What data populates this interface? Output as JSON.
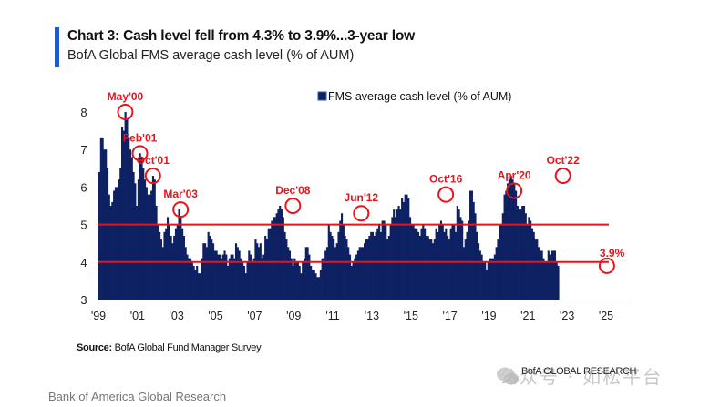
{
  "header": {
    "title": "Chart 3: Cash level fell from 4.3% to 3.9%...3-year low",
    "subtitle": "BofA Global FMS average cash level (% of AUM)"
  },
  "source": {
    "label": "Source:",
    "text": "BofA Global Fund Manager Survey"
  },
  "footer": "Bank of America Global Research",
  "brand": "BofA GLOBAL RESEARCH",
  "watermark": "公众号 · 如松平台",
  "colors": {
    "bar": "#0d2163",
    "reference": "#e8141c",
    "annotation": "#e8141c",
    "title_accent": "#1f5ccc"
  },
  "chart_data": {
    "type": "bar",
    "title": "Chart 3: Cash level fell from 4.3% to 3.9%...3-year low",
    "subtitle": "BofA Global FMS average cash level (% of AUM)",
    "xlabel": "",
    "ylabel": "",
    "ylim": [
      3,
      8
    ],
    "yticks": [
      3,
      4,
      5,
      6,
      7,
      8
    ],
    "xticks": [
      "'99",
      "'01",
      "'03",
      "'05",
      "'07",
      "'09",
      "'11",
      "'13",
      "'15",
      "'17",
      "'19",
      "'21",
      "'23",
      "'25"
    ],
    "xtick_years": [
      1999,
      2001,
      2003,
      2005,
      2007,
      2009,
      2011,
      2013,
      2015,
      2017,
      2019,
      2021,
      2023,
      2025
    ],
    "grid": false,
    "legend": {
      "position": "top-center",
      "entries": [
        "FMS average cash level (% of AUM)"
      ]
    },
    "reference_lines": [
      5.0,
      4.0
    ],
    "start": "1999-01",
    "frequency": "monthly",
    "series": [
      {
        "name": "FMS average cash level (% of AUM)",
        "values": [
          6.4,
          7.3,
          7.3,
          7.0,
          7.0,
          6.5,
          5.8,
          5.5,
          5.6,
          5.9,
          6.0,
          6.0,
          6.2,
          6.5,
          7.6,
          7.5,
          8.0,
          7.8,
          7.3,
          7.0,
          6.8,
          6.4,
          6.1,
          5.5,
          6.2,
          6.9,
          6.8,
          6.5,
          6.2,
          6.0,
          5.8,
          5.8,
          5.9,
          6.3,
          6.2,
          5.5,
          5.0,
          4.8,
          4.6,
          4.4,
          4.8,
          4.9,
          5.2,
          5.0,
          4.7,
          4.5,
          4.7,
          4.9,
          5.0,
          5.4,
          5.2,
          4.9,
          4.7,
          4.4,
          4.2,
          4.1,
          4.1,
          4.0,
          3.9,
          3.8,
          3.9,
          3.7,
          3.7,
          4.1,
          4.5,
          4.5,
          4.4,
          4.8,
          4.7,
          4.6,
          4.5,
          4.3,
          4.3,
          4.2,
          4.2,
          4.1,
          4.2,
          4.3,
          4.2,
          3.9,
          4.1,
          4.2,
          4.2,
          4.1,
          4.5,
          4.4,
          4.3,
          4.1,
          4.0,
          3.9,
          3.7,
          4.0,
          4.3,
          4.2,
          4.0,
          4.1,
          4.6,
          4.5,
          4.4,
          4.5,
          4.1,
          4.2,
          4.7,
          4.6,
          4.9,
          4.9,
          5.1,
          5.2,
          5.2,
          5.3,
          5.4,
          5.5,
          5.4,
          5.2,
          4.8,
          4.6,
          4.4,
          4.3,
          4.1,
          3.9,
          4.1,
          4.0,
          4.0,
          3.9,
          3.7,
          4.0,
          4.1,
          4.4,
          4.4,
          4.2,
          3.9,
          3.8,
          3.8,
          3.7,
          3.6,
          3.6,
          3.8,
          4.1,
          4.1,
          4.3,
          4.4,
          5.0,
          4.8,
          4.7,
          4.6,
          4.4,
          4.5,
          4.8,
          5.1,
          5.3,
          5.0,
          4.7,
          4.6,
          4.4,
          4.2,
          3.9,
          4.0,
          4.1,
          4.2,
          4.3,
          4.4,
          4.4,
          4.4,
          4.5,
          4.6,
          4.6,
          4.7,
          4.8,
          4.8,
          4.7,
          4.8,
          4.9,
          5.0,
          4.8,
          5.1,
          5.1,
          5.0,
          4.6,
          4.7,
          5.0,
          5.2,
          5.4,
          5.2,
          5.4,
          5.5,
          5.4,
          5.7,
          5.6,
          5.8,
          5.8,
          5.7,
          5.2,
          5.0,
          5.0,
          4.9,
          4.9,
          4.8,
          4.7,
          4.9,
          5.0,
          4.9,
          4.7,
          4.7,
          4.6,
          4.6,
          4.5,
          4.6,
          4.9,
          4.8,
          5.0,
          5.1,
          5.0,
          4.8,
          4.9,
          4.7,
          4.6,
          4.9,
          5.0,
          5.0,
          4.8,
          5.5,
          5.4,
          5.2,
          5.1,
          4.4,
          4.6,
          4.8,
          5.1,
          5.9,
          5.9,
          5.6,
          5.3,
          4.8,
          4.5,
          4.3,
          4.2,
          4.0,
          4.0,
          3.8,
          4.0,
          4.1,
          4.1,
          4.1,
          4.2,
          4.4,
          4.6,
          5.0,
          5.0,
          5.3,
          5.8,
          5.9,
          6.1,
          6.2,
          6.3,
          6.2,
          6.1,
          5.9,
          5.5,
          5.4,
          5.4,
          5.5,
          5.5,
          5.3,
          5.0,
          5.2,
          5.1,
          4.9,
          4.8,
          4.6,
          4.6,
          4.4,
          4.3,
          4.3,
          4.1,
          4.0,
          4.0,
          4.3,
          4.2,
          4.3,
          4.3,
          4.3,
          4.0,
          3.9
        ]
      }
    ],
    "annotations": [
      {
        "label": "May'00",
        "date": "2000-05",
        "value": 8.0
      },
      {
        "label": "Feb'01",
        "date": "2001-02",
        "value": 6.9
      },
      {
        "label": "Oct'01",
        "date": "2001-10",
        "value": 6.3
      },
      {
        "label": "Mar'03",
        "date": "2003-03",
        "value": 5.4
      },
      {
        "label": "Dec'08",
        "date": "2008-12",
        "value": 5.5
      },
      {
        "label": "Jun'12",
        "date": "2012-06",
        "value": 5.3
      },
      {
        "label": "Oct'16",
        "date": "2016-10",
        "value": 5.8
      },
      {
        "label": "Apr'20",
        "date": "2020-04",
        "value": 5.9
      },
      {
        "label": "Oct'22",
        "date": "2022-10",
        "value": 6.3
      },
      {
        "label": "3.9%",
        "date": "2025-01",
        "value": 3.9
      }
    ]
  }
}
